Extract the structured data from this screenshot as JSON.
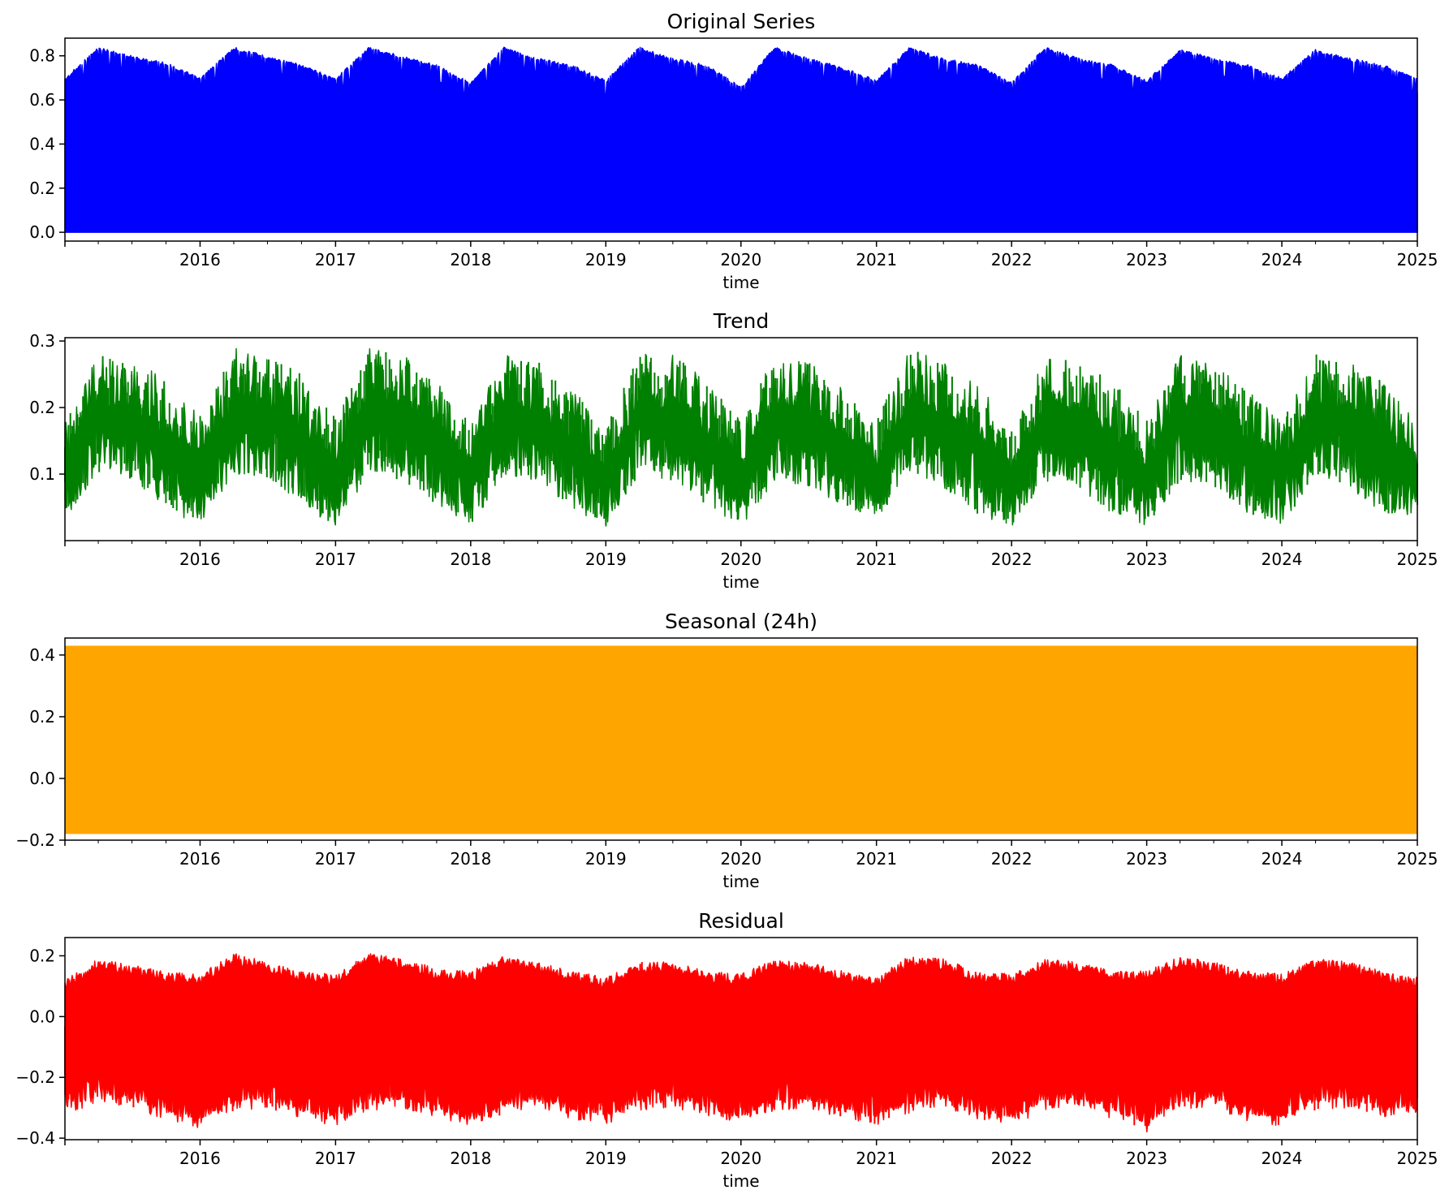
{
  "figure": {
    "background": "#ffffff"
  },
  "chart_data": [
    {
      "type": "line",
      "title": "Original Series",
      "xlabel": "time",
      "ylabel": "",
      "color": "#0000ff",
      "xlim": [
        "2015-01-01",
        "2025-01-01"
      ],
      "ylim": [
        -0.04,
        0.88
      ],
      "yticks": [
        "0.0",
        "0.2",
        "0.4",
        "0.6",
        "0.8"
      ],
      "ytick_values": [
        0.0,
        0.2,
        0.4,
        0.6,
        0.8
      ],
      "xticks": [
        "2016",
        "2017",
        "2018",
        "2019",
        "2020",
        "2021",
        "2022",
        "2023",
        "2024",
        "2025"
      ],
      "grid": false,
      "envelope": {
        "dates": [
          "2015-01-01",
          "2015-04-01",
          "2015-07-01",
          "2015-10-01",
          "2016-01-01",
          "2016-04-01",
          "2016-07-01",
          "2016-10-01",
          "2017-01-01",
          "2017-04-01",
          "2017-07-01",
          "2017-10-01",
          "2018-01-01",
          "2018-04-01",
          "2018-07-01",
          "2018-10-01",
          "2019-01-01",
          "2019-04-01",
          "2019-07-01",
          "2019-10-01",
          "2020-01-01",
          "2020-04-01",
          "2020-07-01",
          "2020-10-01",
          "2021-01-01",
          "2021-04-01",
          "2021-07-01",
          "2021-10-01",
          "2022-01-01",
          "2022-04-01",
          "2022-07-01",
          "2022-10-01",
          "2023-01-01",
          "2023-04-01",
          "2023-07-01",
          "2023-10-01",
          "2024-01-01",
          "2024-04-01",
          "2024-07-01",
          "2024-10-01",
          "2025-01-01"
        ],
        "upper": [
          0.7,
          0.84,
          0.8,
          0.77,
          0.7,
          0.84,
          0.8,
          0.76,
          0.7,
          0.84,
          0.8,
          0.76,
          0.68,
          0.84,
          0.79,
          0.76,
          0.69,
          0.84,
          0.79,
          0.76,
          0.66,
          0.84,
          0.79,
          0.75,
          0.69,
          0.84,
          0.79,
          0.76,
          0.68,
          0.84,
          0.79,
          0.76,
          0.69,
          0.83,
          0.79,
          0.76,
          0.7,
          0.83,
          0.79,
          0.76,
          0.7
        ],
        "lower": [
          0.0,
          0.0,
          0.0,
          0.0,
          0.0,
          0.0,
          0.0,
          0.0,
          0.0,
          0.0,
          0.0,
          0.0,
          0.0,
          0.0,
          0.0,
          0.0,
          0.0,
          0.0,
          0.0,
          0.0,
          0.0,
          0.0,
          0.0,
          0.0,
          0.0,
          0.0,
          0.0,
          0.0,
          0.0,
          0.0,
          0.0,
          0.0,
          0.0,
          0.0,
          0.0,
          0.0,
          0.0,
          0.0,
          0.0,
          0.0,
          0.0
        ]
      }
    },
    {
      "type": "line",
      "title": "Trend",
      "xlabel": "time",
      "ylabel": "",
      "color": "#008000",
      "xlim": [
        "2015-01-01",
        "2025-01-01"
      ],
      "ylim": [
        0.0,
        0.305
      ],
      "yticks": [
        "0.1",
        "0.2",
        "0.3"
      ],
      "ytick_values": [
        0.1,
        0.2,
        0.3
      ],
      "xticks": [
        "2016",
        "2017",
        "2018",
        "2019",
        "2020",
        "2021",
        "2022",
        "2023",
        "2024",
        "2025"
      ],
      "grid": false,
      "envelope": {
        "dates": [
          "2015-01-01",
          "2015-04-01",
          "2015-07-01",
          "2015-10-01",
          "2016-01-01",
          "2016-04-01",
          "2016-07-01",
          "2016-10-01",
          "2017-01-01",
          "2017-04-01",
          "2017-07-01",
          "2017-10-01",
          "2018-01-01",
          "2018-04-01",
          "2018-07-01",
          "2018-10-01",
          "2019-01-01",
          "2019-04-01",
          "2019-07-01",
          "2019-10-01",
          "2020-01-01",
          "2020-04-01",
          "2020-07-01",
          "2020-10-01",
          "2021-01-01",
          "2021-04-01",
          "2021-07-01",
          "2021-10-01",
          "2022-01-01",
          "2022-04-01",
          "2022-07-01",
          "2022-10-01",
          "2023-01-01",
          "2023-04-01",
          "2023-07-01",
          "2023-10-01",
          "2024-01-01",
          "2024-04-01",
          "2024-07-01",
          "2024-10-01",
          "2025-01-01"
        ],
        "upper": [
          0.18,
          0.28,
          0.28,
          0.24,
          0.19,
          0.29,
          0.28,
          0.25,
          0.19,
          0.29,
          0.28,
          0.24,
          0.18,
          0.28,
          0.27,
          0.23,
          0.17,
          0.28,
          0.28,
          0.24,
          0.18,
          0.28,
          0.27,
          0.23,
          0.18,
          0.29,
          0.27,
          0.24,
          0.17,
          0.28,
          0.27,
          0.24,
          0.18,
          0.28,
          0.27,
          0.23,
          0.18,
          0.28,
          0.27,
          0.24,
          0.18
        ],
        "lower": [
          0.03,
          0.1,
          0.09,
          0.05,
          0.02,
          0.1,
          0.09,
          0.05,
          0.02,
          0.1,
          0.09,
          0.05,
          0.02,
          0.1,
          0.09,
          0.05,
          0.02,
          0.1,
          0.09,
          0.05,
          0.02,
          0.09,
          0.08,
          0.05,
          0.03,
          0.1,
          0.08,
          0.04,
          0.02,
          0.09,
          0.08,
          0.04,
          0.02,
          0.09,
          0.08,
          0.04,
          0.02,
          0.1,
          0.08,
          0.04,
          0.03
        ]
      }
    },
    {
      "type": "line",
      "title": "Seasonal (24h)",
      "xlabel": "time",
      "ylabel": "",
      "color": "#ffa500",
      "xlim": [
        "2015-01-01",
        "2025-01-01"
      ],
      "ylim": [
        -0.2,
        0.455
      ],
      "yticks": [
        "−0.2",
        "0.0",
        "0.2",
        "0.4"
      ],
      "ytick_values": [
        -0.2,
        0.0,
        0.2,
        0.4
      ],
      "xticks": [
        "2016",
        "2017",
        "2018",
        "2019",
        "2020",
        "2021",
        "2022",
        "2023",
        "2024",
        "2025"
      ],
      "grid": false,
      "envelope": {
        "dates": [
          "2015-01-01",
          "2025-01-01"
        ],
        "upper": [
          0.43,
          0.43
        ],
        "lower": [
          -0.18,
          -0.18
        ]
      }
    },
    {
      "type": "line",
      "title": "Residual",
      "xlabel": "time",
      "ylabel": "",
      "color": "#ff0000",
      "xlim": [
        "2015-01-01",
        "2025-01-01"
      ],
      "ylim": [
        -0.405,
        0.26
      ],
      "yticks": [
        "−0.4",
        "−0.2",
        "0.0",
        "0.2"
      ],
      "ytick_values": [
        -0.4,
        -0.2,
        0.0,
        0.2
      ],
      "xticks": [
        "2016",
        "2017",
        "2018",
        "2019",
        "2020",
        "2021",
        "2022",
        "2023",
        "2024",
        "2025"
      ],
      "grid": false,
      "envelope": {
        "dates": [
          "2015-01-01",
          "2015-04-01",
          "2015-07-01",
          "2015-10-01",
          "2016-01-01",
          "2016-04-01",
          "2016-07-01",
          "2016-10-01",
          "2017-01-01",
          "2017-04-01",
          "2017-07-01",
          "2017-10-01",
          "2018-01-01",
          "2018-04-01",
          "2018-07-01",
          "2018-10-01",
          "2019-01-01",
          "2019-04-01",
          "2019-07-01",
          "2019-10-01",
          "2020-01-01",
          "2020-04-01",
          "2020-07-01",
          "2020-10-01",
          "2021-01-01",
          "2021-04-01",
          "2021-07-01",
          "2021-10-01",
          "2022-01-01",
          "2022-04-01",
          "2022-07-01",
          "2022-10-01",
          "2023-01-01",
          "2023-04-01",
          "2023-07-01",
          "2023-10-01",
          "2024-01-01",
          "2024-04-01",
          "2024-07-01",
          "2024-10-01",
          "2025-01-01"
        ],
        "upper": [
          0.12,
          0.19,
          0.17,
          0.15,
          0.14,
          0.21,
          0.18,
          0.15,
          0.14,
          0.21,
          0.19,
          0.16,
          0.15,
          0.2,
          0.18,
          0.15,
          0.13,
          0.18,
          0.18,
          0.15,
          0.14,
          0.19,
          0.18,
          0.15,
          0.13,
          0.2,
          0.19,
          0.15,
          0.14,
          0.19,
          0.18,
          0.15,
          0.15,
          0.2,
          0.18,
          0.15,
          0.14,
          0.19,
          0.18,
          0.15,
          0.13
        ],
        "lower": [
          -0.33,
          -0.28,
          -0.3,
          -0.34,
          -0.37,
          -0.31,
          -0.3,
          -0.34,
          -0.36,
          -0.31,
          -0.3,
          -0.34,
          -0.37,
          -0.32,
          -0.3,
          -0.34,
          -0.36,
          -0.31,
          -0.3,
          -0.33,
          -0.36,
          -0.31,
          -0.3,
          -0.34,
          -0.36,
          -0.32,
          -0.3,
          -0.34,
          -0.36,
          -0.31,
          -0.3,
          -0.34,
          -0.38,
          -0.31,
          -0.3,
          -0.35,
          -0.36,
          -0.31,
          -0.3,
          -0.33,
          -0.33
        ]
      }
    }
  ]
}
